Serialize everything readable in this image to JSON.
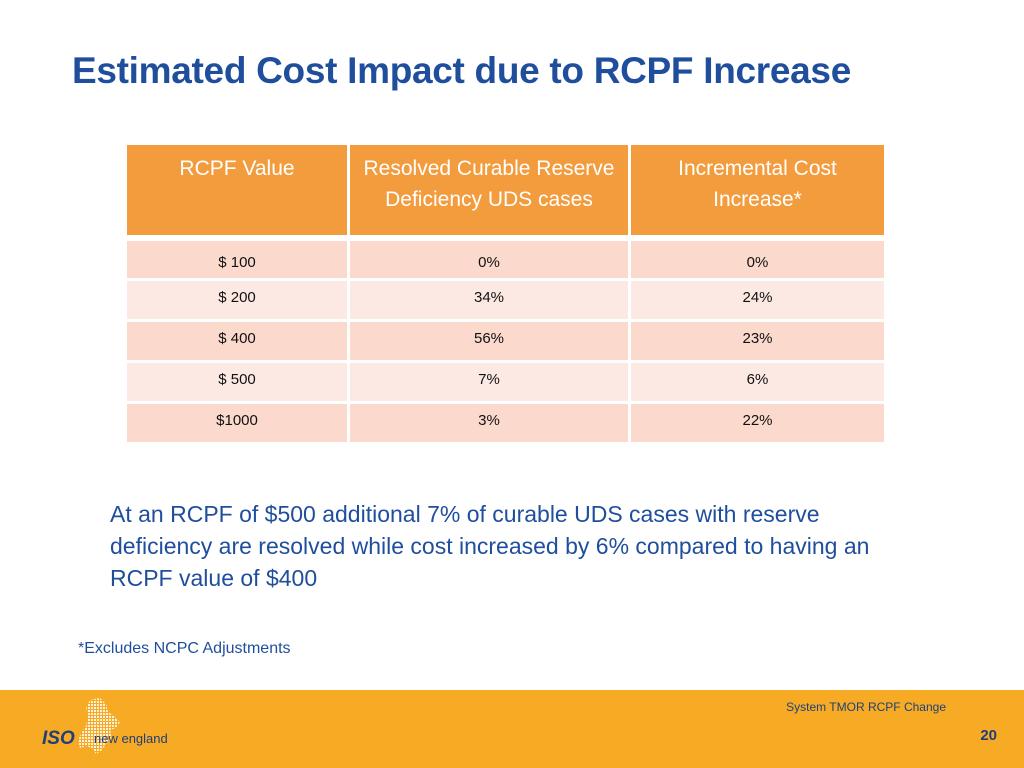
{
  "slide": {
    "title": "Estimated Cost Impact due to RCPF Increase",
    "summary": "At an RCPF of $500 additional 7% of curable UDS cases with reserve deficiency are resolved while cost increased by 6% compared to having an RCPF value of $400",
    "footnote": "*Excludes NCPC Adjustments"
  },
  "table": {
    "headers": [
      "RCPF Value",
      "Resolved Curable Reserve Deficiency UDS cases",
      "Incremental Cost Increase*"
    ],
    "rows": [
      [
        "$  100",
        "0%",
        "0%"
      ],
      [
        "$  200",
        "34%",
        "24%"
      ],
      [
        "$  400",
        "56%",
        "23%"
      ],
      [
        "$  500",
        "7%",
        "6%"
      ],
      [
        "$1000",
        "3%",
        "22%"
      ]
    ]
  },
  "footer": {
    "presentation_title": "System TMOR RCPF Change",
    "page_number": "20",
    "logo_text_iso": "ISO",
    "logo_text_region": "new england",
    "logo_icon": "new-england-map-icon"
  },
  "colors": {
    "title": "#1f4e9c",
    "header_fill": "#f39c3e",
    "row_odd": "#fbd9cd",
    "row_even": "#fde9e3",
    "footer_bar": "#f7ab24"
  }
}
